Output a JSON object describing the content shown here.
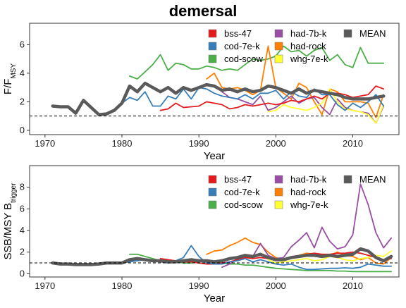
{
  "title": "demersal",
  "colors": {
    "bss-47": "#e41a1c",
    "cod-7e-k": "#377eb8",
    "cod-scow": "#4daf4a",
    "had-7b-k": "#984ea3",
    "had-rock": "#ff7f00",
    "whg-7e-k": "#ffff33",
    "MEAN": "#5a5a5a"
  },
  "chart_data": [
    {
      "type": "line",
      "ylabel_main": "F/F",
      "ylabel_sub": "MSY",
      "xlabel": "Year",
      "xlim": [
        1968,
        2016
      ],
      "ylim": [
        -0.3,
        7.5
      ],
      "xticks": [
        1970,
        1980,
        1990,
        2000,
        2010
      ],
      "yticks": [
        0,
        2,
        4,
        6
      ],
      "reference_line": 1,
      "legend": [
        "bss-47",
        "cod-7e-k",
        "cod-scow",
        "had-7b-k",
        "had-rock",
        "whg-7e-k",
        "MEAN"
      ],
      "series": [
        {
          "name": "bss-47",
          "x": [
            1985,
            1986,
            1987,
            1988,
            1989,
            1990,
            1991,
            1992,
            1993,
            1994,
            1995,
            1996,
            1997,
            1998,
            1999,
            2000,
            2001,
            2002,
            2003,
            2004,
            2005,
            2006,
            2007,
            2008,
            2009,
            2010,
            2011,
            2012,
            2013,
            2014
          ],
          "y": [
            1.4,
            1.5,
            1.9,
            1.6,
            1.65,
            1.7,
            2.0,
            1.9,
            1.8,
            1.5,
            1.6,
            1.8,
            1.7,
            1.8,
            1.9,
            1.8,
            1.9,
            2.1,
            2.0,
            2.2,
            2.4,
            2.2,
            2.6,
            2.6,
            2.5,
            2.3,
            2.4,
            2.5,
            3.1,
            2.9
          ]
        },
        {
          "name": "cod-7e-k",
          "x": [
            1971,
            1972,
            1973,
            1974,
            1975,
            1976,
            1977,
            1978,
            1979,
            1980,
            1981,
            1982,
            1983,
            1984,
            1985,
            1986,
            1987,
            1988,
            1989,
            1990,
            1991,
            1992,
            1993,
            1994,
            1995,
            1996,
            1997,
            1998,
            1999,
            2000,
            2001,
            2002,
            2003,
            2004,
            2005,
            2006,
            2007,
            2008,
            2009,
            2010,
            2011,
            2012,
            2013,
            2014
          ],
          "y": [
            1.7,
            1.65,
            1.65,
            1.2,
            2.1,
            1.6,
            1.1,
            1.15,
            1.4,
            1.9,
            2.3,
            2.1,
            2.7,
            1.7,
            1.7,
            2.4,
            2.2,
            2.9,
            2.2,
            3.0,
            2.9,
            2.6,
            2.4,
            2.3,
            2.2,
            2.5,
            2.2,
            2.6,
            2.6,
            2.8,
            2.2,
            2.7,
            2.4,
            2.3,
            2.9,
            2.5,
            2.5,
            1.8,
            1.4,
            1.9,
            1.6,
            2.0,
            2.5,
            1.7
          ]
        },
        {
          "name": "cod-scow",
          "x": [
            1981,
            1982,
            1983,
            1984,
            1985,
            1986,
            1987,
            1988,
            1989,
            1990,
            1991,
            1992,
            1993,
            1994,
            1995,
            1996,
            1997,
            1998,
            1999,
            2000,
            2001,
            2002,
            2003,
            2004,
            2005,
            2006,
            2007,
            2008,
            2009,
            2010,
            2011,
            2012,
            2013,
            2014
          ],
          "y": [
            3.8,
            3.6,
            4.1,
            4.6,
            5.3,
            4.2,
            4.7,
            4.6,
            4.3,
            4.3,
            4.5,
            4.4,
            4.2,
            4.3,
            4.2,
            4.6,
            5.0,
            4.9,
            5.0,
            5.2,
            5.9,
            5.5,
            5.6,
            5.2,
            5.6,
            5.8,
            4.9,
            5.3,
            4.6,
            4.4,
            5.8,
            4.7,
            4.7,
            4.7
          ]
        },
        {
          "name": "had-7b-k",
          "x": [
            1993,
            1994,
            1995,
            1996,
            1997,
            1998,
            1999,
            2000,
            2001,
            2002,
            2003,
            2004,
            2005,
            2006,
            2007,
            2008,
            2009,
            2010,
            2011,
            2012,
            2013,
            2014
          ],
          "y": [
            2.7,
            2.3,
            2.2,
            2.0,
            1.8,
            2.4,
            1.4,
            1.6,
            2.0,
            2.4,
            1.9,
            2.2,
            2.3,
            1.6,
            1.1,
            2.2,
            1.6,
            1.4,
            1.3,
            1.2,
            0.5,
            1.7
          ]
        },
        {
          "name": "had-rock",
          "x": [
            1991,
            1992,
            1993,
            1994,
            1995,
            1996,
            1997,
            1998,
            1999,
            2000,
            2001,
            2002,
            2003,
            2004,
            2005,
            2006,
            2007,
            2008,
            2009,
            2010,
            2011,
            2012,
            2013,
            2014
          ],
          "y": [
            3.6,
            4.0,
            3.0,
            2.9,
            3.0,
            2.8,
            2.5,
            2.8,
            5.9,
            3.0,
            2.6,
            2.2,
            3.3,
            3.0,
            2.0,
            1.1,
            2.9,
            2.7,
            2.0,
            2.0,
            2.0,
            1.9,
            0.9,
            2.5
          ]
        },
        {
          "name": "whg-7e-k",
          "x": [
            1999,
            2000,
            2001,
            2002,
            2003,
            2004,
            2005,
            2006,
            2007,
            2008,
            2009,
            2010,
            2011,
            2012,
            2013,
            2014
          ],
          "y": [
            1.3,
            1.4,
            1.8,
            1.6,
            1.5,
            1.4,
            1.6,
            1.9,
            2.9,
            2.0,
            1.5,
            1.4,
            1.3,
            1.1,
            0.5,
            1.8
          ]
        },
        {
          "name": "MEAN",
          "x": [
            1971,
            1972,
            1973,
            1974,
            1975,
            1976,
            1977,
            1978,
            1979,
            1980,
            1981,
            1982,
            1983,
            1984,
            1985,
            1986,
            1987,
            1988,
            1989,
            1990,
            1991,
            1992,
            1993,
            1994,
            1995,
            1996,
            1997,
            1998,
            1999,
            2000,
            2001,
            2002,
            2003,
            2004,
            2005,
            2006,
            2007,
            2008,
            2009,
            2010,
            2011,
            2012,
            2013,
            2014
          ],
          "y": [
            1.7,
            1.65,
            1.65,
            1.2,
            2.1,
            1.6,
            1.1,
            1.15,
            1.4,
            1.9,
            3.1,
            2.7,
            3.3,
            3.0,
            2.7,
            3.0,
            2.6,
            3.0,
            2.8,
            3.0,
            3.2,
            3.1,
            2.8,
            2.9,
            2.7,
            2.9,
            2.7,
            2.8,
            3.1,
            3.0,
            2.8,
            2.6,
            2.9,
            2.6,
            2.8,
            2.7,
            2.6,
            2.5,
            2.3,
            2.2,
            2.2,
            2.2,
            2.3,
            2.4
          ]
        }
      ]
    },
    {
      "type": "line",
      "ylabel_main": "SSB/MSY B",
      "ylabel_sub": "trigger",
      "xlabel": "Year",
      "xlim": [
        1968,
        2016
      ],
      "ylim": [
        -0.3,
        10
      ],
      "xticks": [
        1970,
        1980,
        1990,
        2000,
        2010
      ],
      "yticks": [
        0,
        2,
        4,
        6,
        8
      ],
      "reference_line": 1,
      "legend": [
        "bss-47",
        "cod-7e-k",
        "cod-scow",
        "had-7b-k",
        "had-rock",
        "whg-7e-k",
        "MEAN"
      ],
      "series": [
        {
          "name": "bss-47",
          "x": [
            1985,
            1986,
            1987,
            1988,
            1989,
            1990,
            1991,
            1992,
            1993,
            1994,
            1995,
            1996,
            1997,
            1998,
            1999,
            2000,
            2001,
            2002,
            2003,
            2004,
            2005,
            2006,
            2007,
            2008,
            2009,
            2010,
            2011,
            2012,
            2013,
            2014,
            2015
          ],
          "y": [
            1.4,
            1.3,
            1.2,
            1.1,
            1.1,
            1.0,
            0.9,
            0.9,
            1.0,
            1.1,
            1.3,
            1.5,
            1.4,
            1.5,
            1.4,
            1.3,
            1.3,
            1.5,
            1.6,
            1.8,
            1.9,
            1.8,
            1.8,
            1.9,
            1.9,
            2.0,
            1.9,
            1.7,
            1.5,
            1.3,
            1.4
          ]
        },
        {
          "name": "cod-7e-k",
          "x": [
            1971,
            1972,
            1973,
            1974,
            1975,
            1976,
            1977,
            1978,
            1979,
            1980,
            1981,
            1982,
            1983,
            1984,
            1985,
            1986,
            1987,
            1988,
            1989,
            1990,
            1991,
            1992,
            1993,
            1994,
            1995,
            1996,
            1997,
            1998,
            1999,
            2000,
            2001,
            2002,
            2003,
            2004,
            2005,
            2006,
            2007,
            2008,
            2009,
            2010,
            2011,
            2012,
            2013,
            2014,
            2015
          ],
          "y": [
            1.0,
            0.9,
            0.9,
            0.85,
            0.85,
            0.85,
            0.9,
            1.0,
            1.0,
            1.0,
            1.1,
            1.2,
            1.3,
            1.2,
            1.1,
            1.0,
            1.2,
            1.5,
            2.6,
            1.6,
            1.0,
            0.9,
            0.9,
            1.1,
            1.2,
            1.4,
            1.1,
            1.3,
            1.1,
            0.9,
            0.8,
            0.9,
            0.6,
            0.4,
            0.4,
            0.45,
            0.5,
            0.5,
            0.55,
            0.5,
            0.6,
            0.9,
            0.8,
            0.7,
            0.7
          ]
        },
        {
          "name": "cod-scow",
          "x": [
            1981,
            1982,
            1983,
            1984,
            1985,
            1986,
            1987,
            1988,
            1989,
            1990,
            1991,
            1992,
            1993,
            1994,
            1995,
            1996,
            1997,
            1998,
            1999,
            2000,
            2001,
            2002,
            2003,
            2004,
            2005,
            2006,
            2007,
            2008,
            2009,
            2010,
            2011,
            2012,
            2013,
            2014,
            2015
          ],
          "y": [
            1.8,
            1.8,
            1.6,
            1.4,
            1.2,
            1.1,
            1.1,
            1.0,
            1.0,
            1.1,
            1.2,
            1.1,
            1.0,
            0.9,
            0.9,
            0.8,
            0.8,
            0.7,
            0.6,
            0.5,
            0.45,
            0.4,
            0.35,
            0.3,
            0.3,
            0.3,
            0.3,
            0.25,
            0.25,
            0.2,
            0.2,
            0.2,
            0.2,
            0.2,
            0.2
          ]
        },
        {
          "name": "had-7b-k",
          "x": [
            1993,
            1994,
            1995,
            1996,
            1997,
            1998,
            1999,
            2000,
            2001,
            2002,
            2003,
            2004,
            2005,
            2006,
            2007,
            2008,
            2009,
            2010,
            2011,
            2012,
            2013,
            2014,
            2015
          ],
          "y": [
            0.6,
            0.9,
            1.4,
            1.5,
            1.6,
            2.8,
            1.7,
            1.4,
            1.5,
            2.5,
            3.1,
            3.8,
            2.4,
            4.3,
            3.0,
            2.3,
            2.5,
            3.6,
            8.3,
            6.4,
            3.8,
            2.4,
            3.3
          ]
        },
        {
          "name": "had-rock",
          "x": [
            1991,
            1992,
            1993,
            1994,
            1995,
            1996,
            1997,
            1998,
            1999,
            2000,
            2001,
            2002,
            2003,
            2004,
            2005,
            2006,
            2007,
            2008,
            2009,
            2010,
            2011,
            2012,
            2013,
            2014,
            2015
          ],
          "y": [
            1.8,
            2.1,
            2.2,
            2.6,
            2.9,
            3.3,
            2.9,
            2.7,
            2.0,
            1.5,
            1.3,
            1.4,
            1.7,
            1.9,
            1.8,
            1.8,
            1.7,
            2.0,
            1.7,
            1.6,
            1.3,
            1.5,
            1.0,
            0.9,
            1.5
          ]
        },
        {
          "name": "whg-7e-k",
          "x": [
            1999,
            2000,
            2001,
            2002,
            2003,
            2004,
            2005,
            2006,
            2007,
            2008,
            2009,
            2010,
            2011,
            2012,
            2013,
            2014,
            2015
          ],
          "y": [
            1.3,
            1.0,
            1.1,
            1.2,
            1.3,
            1.4,
            1.2,
            1.3,
            1.6,
            1.5,
            1.3,
            1.2,
            1.4,
            1.5,
            1.7,
            1.6,
            2.1
          ]
        },
        {
          "name": "MEAN",
          "x": [
            1971,
            1972,
            1973,
            1974,
            1975,
            1976,
            1977,
            1978,
            1979,
            1980,
            1981,
            1982,
            1983,
            1984,
            1985,
            1986,
            1987,
            1988,
            1989,
            1990,
            1991,
            1992,
            1993,
            1994,
            1995,
            1996,
            1997,
            1998,
            1999,
            2000,
            2001,
            2002,
            2003,
            2004,
            2005,
            2006,
            2007,
            2008,
            2009,
            2010,
            2011,
            2012,
            2013,
            2014,
            2015
          ],
          "y": [
            1.0,
            0.9,
            0.9,
            0.85,
            0.85,
            0.85,
            0.9,
            1.0,
            1.0,
            1.0,
            1.3,
            1.4,
            1.3,
            1.2,
            1.2,
            1.1,
            1.1,
            1.2,
            1.3,
            1.2,
            1.2,
            1.1,
            1.2,
            1.4,
            1.5,
            1.7,
            1.6,
            1.8,
            1.5,
            1.3,
            1.3,
            1.5,
            1.6,
            1.7,
            1.7,
            1.6,
            1.7,
            1.6,
            1.7,
            1.8,
            2.3,
            2.1,
            1.5,
            1.2,
            1.6
          ]
        }
      ]
    }
  ]
}
